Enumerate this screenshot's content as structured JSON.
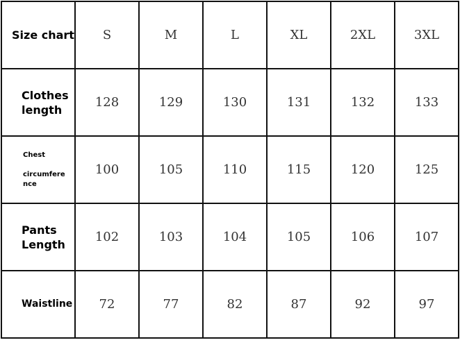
{
  "header": {
    "label": "Size chart",
    "sizes": [
      "S",
      "M",
      "L",
      "XL",
      "2XL",
      "3XL"
    ]
  },
  "rows": [
    {
      "label": "Clothes length",
      "label_lines": [
        "Clothes",
        "length"
      ],
      "values": [
        "128",
        "129",
        "130",
        "131",
        "132",
        "133"
      ]
    },
    {
      "label": "Chest circumference",
      "label_lines": [
        "Chest",
        "circumfere",
        "nce"
      ],
      "values": [
        "100",
        "105",
        "110",
        "115",
        "120",
        "125"
      ]
    },
    {
      "label": "Pants Length",
      "label_lines": [
        "Pants",
        "Length"
      ],
      "values": [
        "102",
        "103",
        "104",
        "105",
        "106",
        "107"
      ]
    },
    {
      "label": "Waistline",
      "label_lines": [
        "Waistline"
      ],
      "values": [
        "72",
        "77",
        "82",
        "87",
        "92",
        "97"
      ]
    }
  ]
}
